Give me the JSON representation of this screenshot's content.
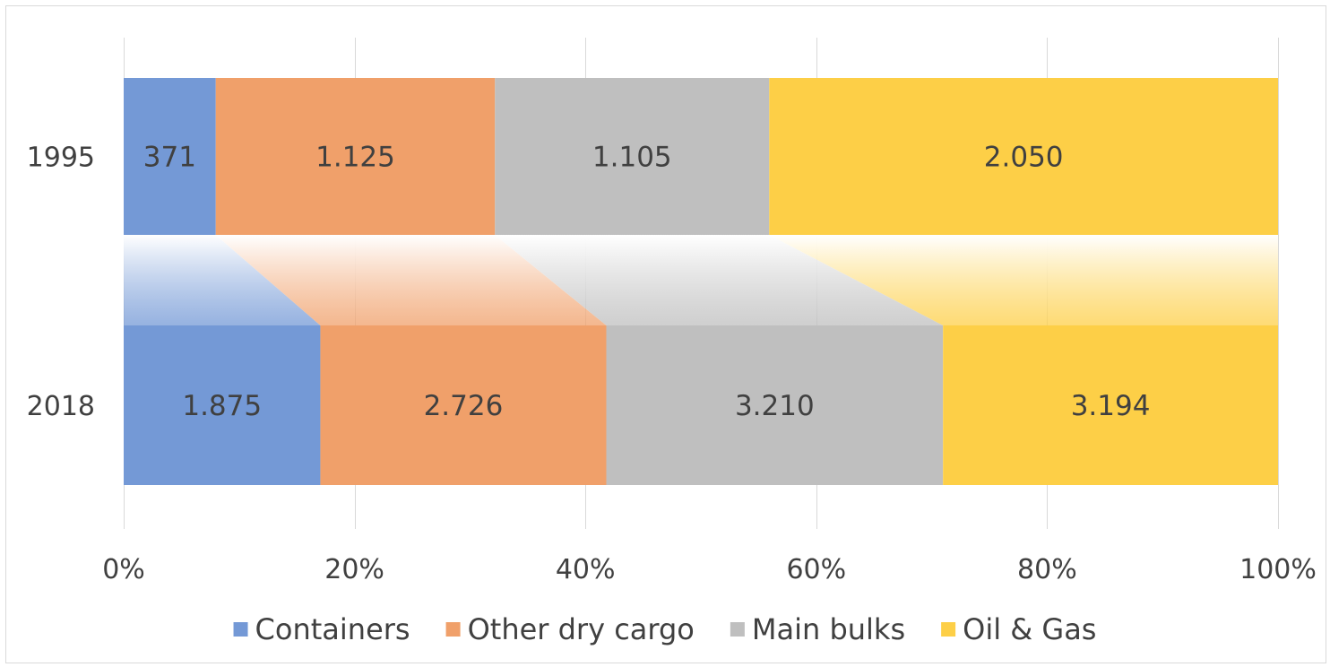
{
  "chart_data": {
    "type": "bar",
    "orientation": "horizontal",
    "stacking": "percent",
    "categories": [
      "1995",
      "2018"
    ],
    "series": [
      {
        "name": "Containers",
        "values": [
          371,
          1875
        ],
        "labels": [
          "371",
          "1.875"
        ],
        "color": "#7499d6"
      },
      {
        "name": "Other dry cargo",
        "values": [
          1125,
          2726
        ],
        "labels": [
          "1.125",
          "2.726"
        ],
        "color": "#f0a06a"
      },
      {
        "name": "Main bulks",
        "values": [
          1105,
          3210
        ],
        "labels": [
          "1.105",
          "3.210"
        ],
        "color": "#bfbfbf"
      },
      {
        "name": "Oil & Gas",
        "values": [
          2050,
          3194
        ],
        "labels": [
          "2.050",
          "3.194"
        ],
        "color": "#fdcf47"
      }
    ],
    "x_ticks": [
      "0%",
      "20%",
      "40%",
      "60%",
      "80%",
      "100%"
    ],
    "xlim": [
      0,
      100
    ],
    "grid": "vertical",
    "legend": "bottom",
    "connectors": true
  }
}
